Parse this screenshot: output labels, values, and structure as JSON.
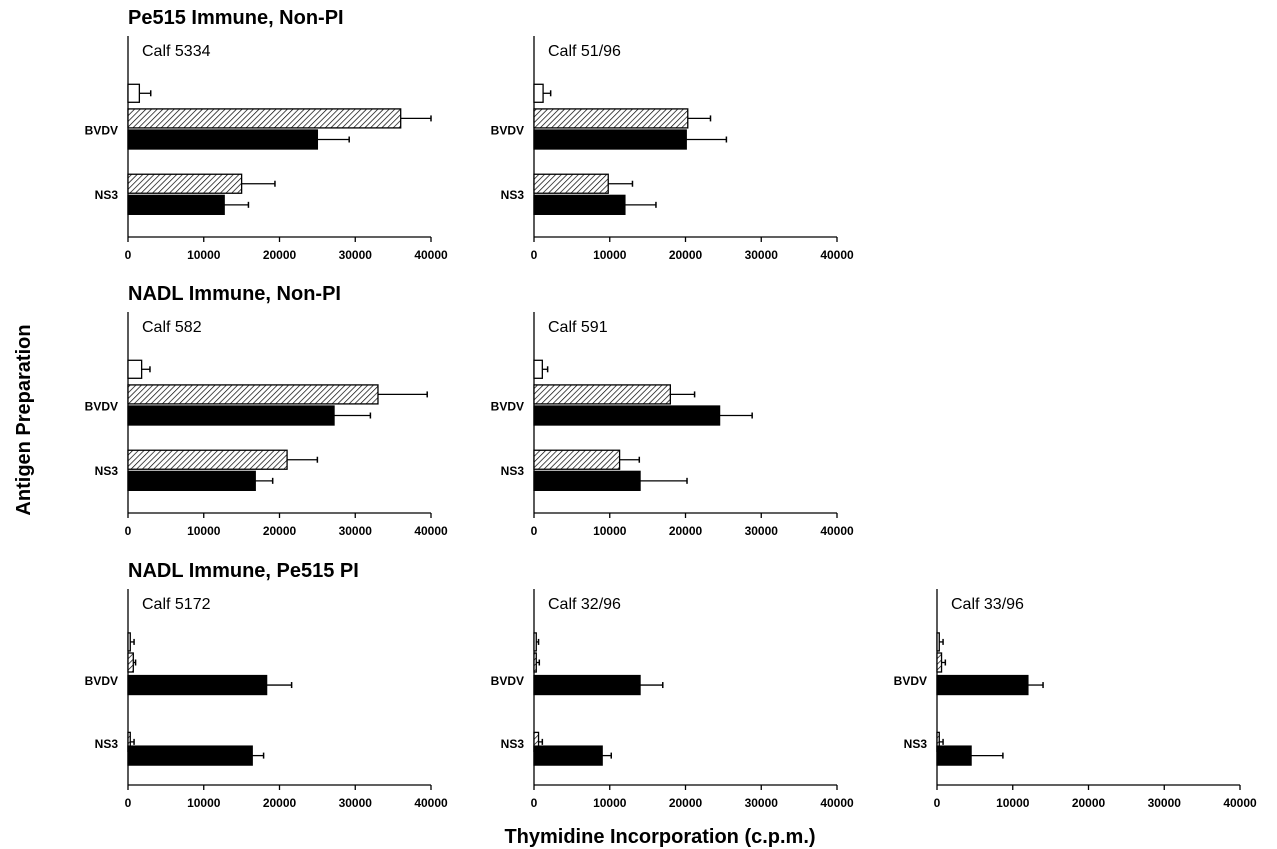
{
  "chart_data": {
    "type": "bar",
    "orientation": "horizontal",
    "xlabel": "Thymidine Incorporation (c.p.m.)",
    "ylabel": "Antigen Preparation",
    "xlim": [
      0,
      40000
    ],
    "xticks": [
      "0",
      "10000",
      "20000",
      "30000",
      "40000"
    ],
    "categories": [
      "BVDV",
      "NS3"
    ],
    "bar_styles": {
      "open": "#ffffff",
      "hatched": "#bbbbbb",
      "solid": "#000000"
    },
    "groups": [
      {
        "title": "Pe515 Immune, Non-PI",
        "panels": [
          {
            "calf": "Calf 5334",
            "bars": [
              {
                "category": "",
                "style": "open",
                "value": 1500,
                "error": 1500
              },
              {
                "category": "BVDV",
                "style": "hatched",
                "value": 36000,
                "error": 4000
              },
              {
                "category": "BVDV",
                "style": "solid",
                "value": 25000,
                "error": 4200
              },
              {
                "category": "NS3",
                "style": "hatched",
                "value": 15000,
                "error": 4400
              },
              {
                "category": "NS3",
                "style": "solid",
                "value": 12700,
                "error": 3200
              }
            ]
          },
          {
            "calf": "Calf 51/96",
            "bars": [
              {
                "category": "",
                "style": "open",
                "value": 1200,
                "error": 1000
              },
              {
                "category": "BVDV",
                "style": "hatched",
                "value": 20300,
                "error": 3000
              },
              {
                "category": "BVDV",
                "style": "solid",
                "value": 20100,
                "error": 5300
              },
              {
                "category": "NS3",
                "style": "hatched",
                "value": 9800,
                "error": 3200
              },
              {
                "category": "NS3",
                "style": "solid",
                "value": 12000,
                "error": 4100
              }
            ]
          }
        ]
      },
      {
        "title": "NADL Immune, Non-PI",
        "panels": [
          {
            "calf": "Calf 582",
            "bars": [
              {
                "category": "",
                "style": "open",
                "value": 1800,
                "error": 1100
              },
              {
                "category": "BVDV",
                "style": "hatched",
                "value": 33000,
                "error": 6500
              },
              {
                "category": "BVDV",
                "style": "solid",
                "value": 27200,
                "error": 4800
              },
              {
                "category": "NS3",
                "style": "hatched",
                "value": 21000,
                "error": 4000
              },
              {
                "category": "NS3",
                "style": "solid",
                "value": 16800,
                "error": 2300
              }
            ]
          },
          {
            "calf": "Calf 591",
            "bars": [
              {
                "category": "",
                "style": "open",
                "value": 1100,
                "error": 700
              },
              {
                "category": "BVDV",
                "style": "hatched",
                "value": 18000,
                "error": 3200
              },
              {
                "category": "BVDV",
                "style": "solid",
                "value": 24500,
                "error": 4300
              },
              {
                "category": "NS3",
                "style": "hatched",
                "value": 11300,
                "error": 2600
              },
              {
                "category": "NS3",
                "style": "solid",
                "value": 14000,
                "error": 6200
              }
            ]
          }
        ]
      },
      {
        "title": "NADL Immune, Pe515 PI",
        "panels": [
          {
            "calf": "Calf 5172",
            "bars": [
              {
                "category": "",
                "style": "open",
                "value": 300,
                "error": 500
              },
              {
                "category": "BVDV",
                "style": "hatched",
                "value": 700,
                "error": 300
              },
              {
                "category": "BVDV",
                "style": "solid",
                "value": 18300,
                "error": 3300
              },
              {
                "category": "NS3",
                "style": "hatched",
                "value": 300,
                "error": 500
              },
              {
                "category": "NS3",
                "style": "solid",
                "value": 16400,
                "error": 1500
              }
            ]
          },
          {
            "calf": "Calf 32/96",
            "bars": [
              {
                "category": "",
                "style": "open",
                "value": 300,
                "error": 300
              },
              {
                "category": "BVDV",
                "style": "hatched",
                "value": 300,
                "error": 400
              },
              {
                "category": "BVDV",
                "style": "solid",
                "value": 14000,
                "error": 3000
              },
              {
                "category": "NS3",
                "style": "hatched",
                "value": 600,
                "error": 500
              },
              {
                "category": "NS3",
                "style": "solid",
                "value": 9000,
                "error": 1200
              }
            ]
          },
          {
            "calf": "Calf 33/96",
            "bars": [
              {
                "category": "",
                "style": "open",
                "value": 300,
                "error": 500
              },
              {
                "category": "BVDV",
                "style": "hatched",
                "value": 600,
                "error": 500
              },
              {
                "category": "BVDV",
                "style": "solid",
                "value": 12000,
                "error": 2000
              },
              {
                "category": "NS3",
                "style": "hatched",
                "value": 300,
                "error": 500
              },
              {
                "category": "NS3",
                "style": "solid",
                "value": 4500,
                "error": 4200
              }
            ]
          }
        ]
      }
    ]
  }
}
